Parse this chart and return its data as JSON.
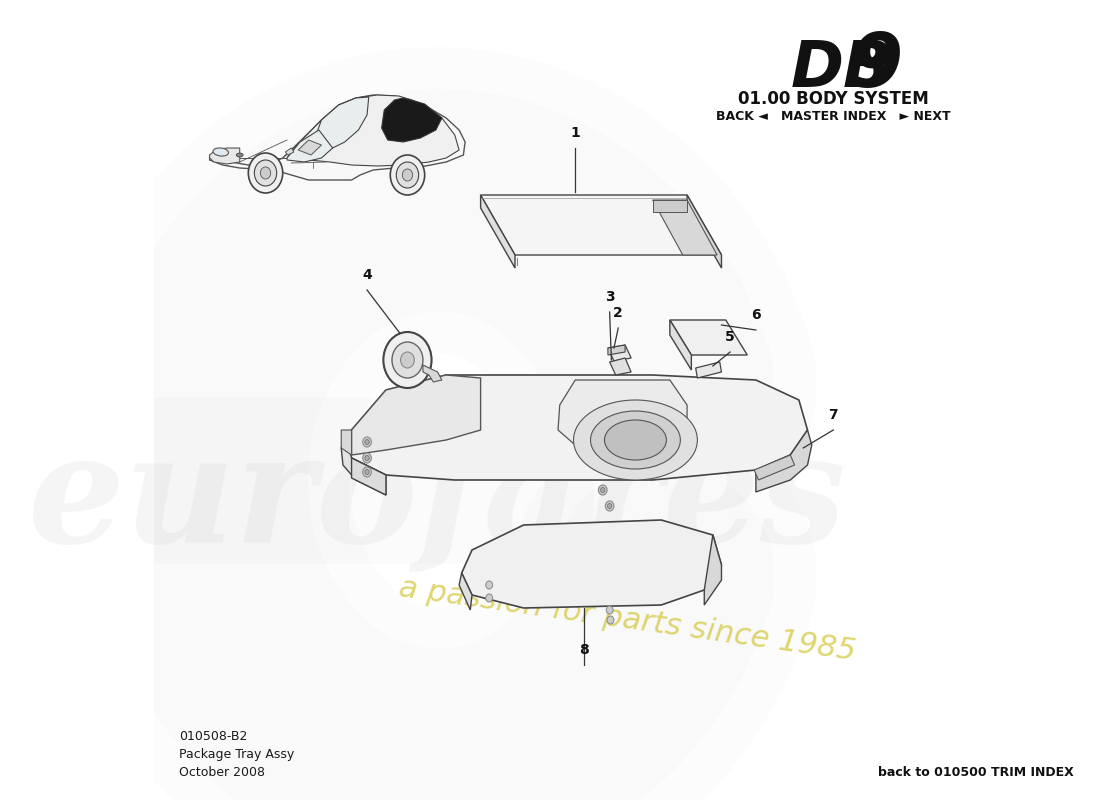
{
  "title_db9_left": "DB",
  "title_db9_right": "9",
  "title_system": "01.00 BODY SYSTEM",
  "nav_text": "BACK ◄   MASTER INDEX   ► NEXT",
  "part_code": "010508-B2",
  "part_name": "Package Tray Assy",
  "date": "October 2008",
  "back_link": "back to 010500 TRIM INDEX",
  "watermark_text1": "eurofares",
  "watermark_text2": "a passion for parts since 1985",
  "bg_color": "#ffffff",
  "line_color": "#444444",
  "light_fill": "#f0f0f0",
  "mid_fill": "#e0e0e0",
  "dark_fill": "#c8c8c8",
  "watermark_color": "#d0d0d0",
  "watermark_yellow": "#d4c840"
}
